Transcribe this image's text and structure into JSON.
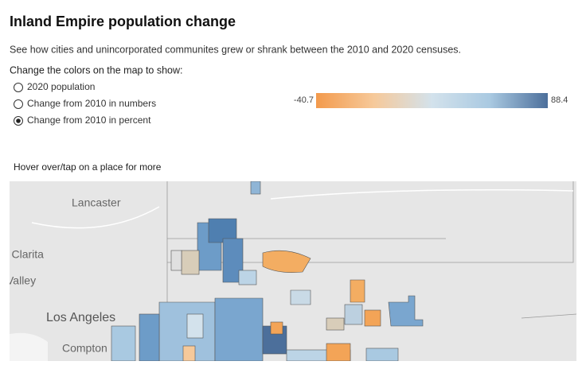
{
  "header": {
    "title": "Inland Empire population change",
    "subtitle": "See how cities and unincorporated communites grew or shrank between the 2010 and 2020 censuses."
  },
  "controls": {
    "label": "Change the colors on the map to show:",
    "options": [
      "2020 population",
      "Change from 2010 in numbers",
      "Change from 2010 in percent"
    ],
    "selected": 2
  },
  "legend": {
    "min": -40.7,
    "max": 88.4,
    "colors": [
      "#f39a4c",
      "#f6c99a",
      "#d3e2ec",
      "#a9c9e1",
      "#4c6f9b"
    ]
  },
  "map": {
    "hint": "Hover over/tap on a place for more",
    "places": [
      "Lancaster",
      "Santa Clarita",
      "Valley",
      "Los Angeles",
      "Compton"
    ]
  }
}
